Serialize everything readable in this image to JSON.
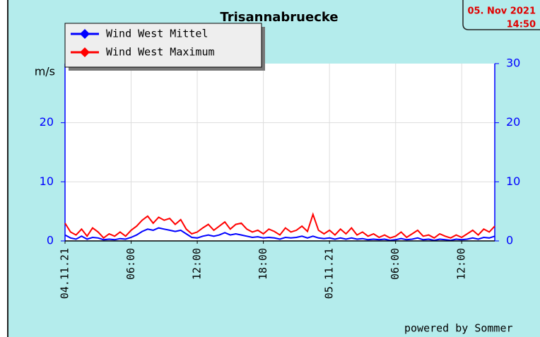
{
  "chart_data": {
    "type": "line",
    "title": "Trisannabruecke",
    "timestamp": [
      "05. Nov 2021",
      "14:50"
    ],
    "y_label": "m/s",
    "footer": "powered by Sommer",
    "categories": [
      "04.11.21",
      null,
      null,
      null,
      null,
      null,
      null,
      null,
      null,
      null,
      null,
      null,
      "06:00",
      null,
      null,
      null,
      null,
      null,
      null,
      null,
      null,
      null,
      null,
      null,
      "12:00",
      null,
      null,
      null,
      null,
      null,
      null,
      null,
      null,
      null,
      null,
      null,
      "18:00",
      null,
      null,
      null,
      null,
      null,
      null,
      null,
      null,
      null,
      null,
      null,
      "05.11.21",
      null,
      null,
      null,
      null,
      null,
      null,
      null,
      null,
      null,
      null,
      null,
      "06:00",
      null,
      null,
      null,
      null,
      null,
      null,
      null,
      null,
      null,
      null,
      null,
      "12:00",
      null,
      null,
      null,
      null,
      null,
      null
    ],
    "series": [
      {
        "name": "Wind West Mittel",
        "color": "#0000ff",
        "values": [
          1.0,
          0.5,
          0.3,
          0.8,
          0.3,
          0.6,
          0.5,
          0.2,
          0.3,
          0.2,
          0.4,
          0.3,
          0.6,
          1.0,
          1.6,
          2.0,
          1.8,
          2.2,
          2.0,
          1.8,
          1.6,
          1.8,
          1.2,
          0.6,
          0.5,
          0.8,
          1.0,
          0.8,
          1.0,
          1.4,
          1.0,
          1.2,
          1.0,
          0.8,
          0.6,
          0.7,
          0.5,
          0.6,
          0.5,
          0.3,
          0.6,
          0.5,
          0.6,
          0.8,
          0.5,
          0.8,
          0.5,
          0.4,
          0.5,
          0.3,
          0.5,
          0.3,
          0.5,
          0.3,
          0.4,
          0.2,
          0.3,
          0.2,
          0.3,
          0.1,
          0.2,
          0.4,
          0.2,
          0.3,
          0.5,
          0.2,
          0.3,
          0.1,
          0.3,
          0.2,
          0.1,
          0.3,
          0.2,
          0.3,
          0.5,
          0.3,
          0.6,
          0.5,
          0.8
        ]
      },
      {
        "name": "Wind West Maximum",
        "color": "#ff0000",
        "values": [
          3.0,
          1.5,
          1.0,
          2.0,
          0.8,
          2.2,
          1.5,
          0.5,
          1.2,
          0.8,
          1.5,
          0.8,
          1.8,
          2.5,
          3.5,
          4.2,
          3.0,
          4.0,
          3.5,
          3.8,
          2.8,
          3.6,
          2.0,
          1.2,
          1.5,
          2.2,
          2.8,
          1.8,
          2.5,
          3.2,
          2.0,
          2.8,
          3.0,
          2.0,
          1.5,
          1.8,
          1.2,
          2.0,
          1.6,
          1.0,
          2.2,
          1.5,
          1.8,
          2.5,
          1.6,
          4.5,
          1.8,
          1.2,
          1.8,
          1.0,
          2.0,
          1.2,
          2.2,
          1.0,
          1.5,
          0.8,
          1.2,
          0.6,
          1.0,
          0.5,
          0.8,
          1.5,
          0.6,
          1.2,
          1.8,
          0.8,
          1.0,
          0.5,
          1.2,
          0.8,
          0.5,
          1.0,
          0.6,
          1.2,
          1.8,
          1.0,
          2.0,
          1.5,
          2.5
        ]
      }
    ],
    "ylim": [
      0,
      30
    ],
    "yticks": [
      0,
      10,
      20
    ],
    "y2lim": [
      0,
      30
    ],
    "y2ticks": [
      0,
      10,
      20,
      30
    ],
    "grid": true
  }
}
